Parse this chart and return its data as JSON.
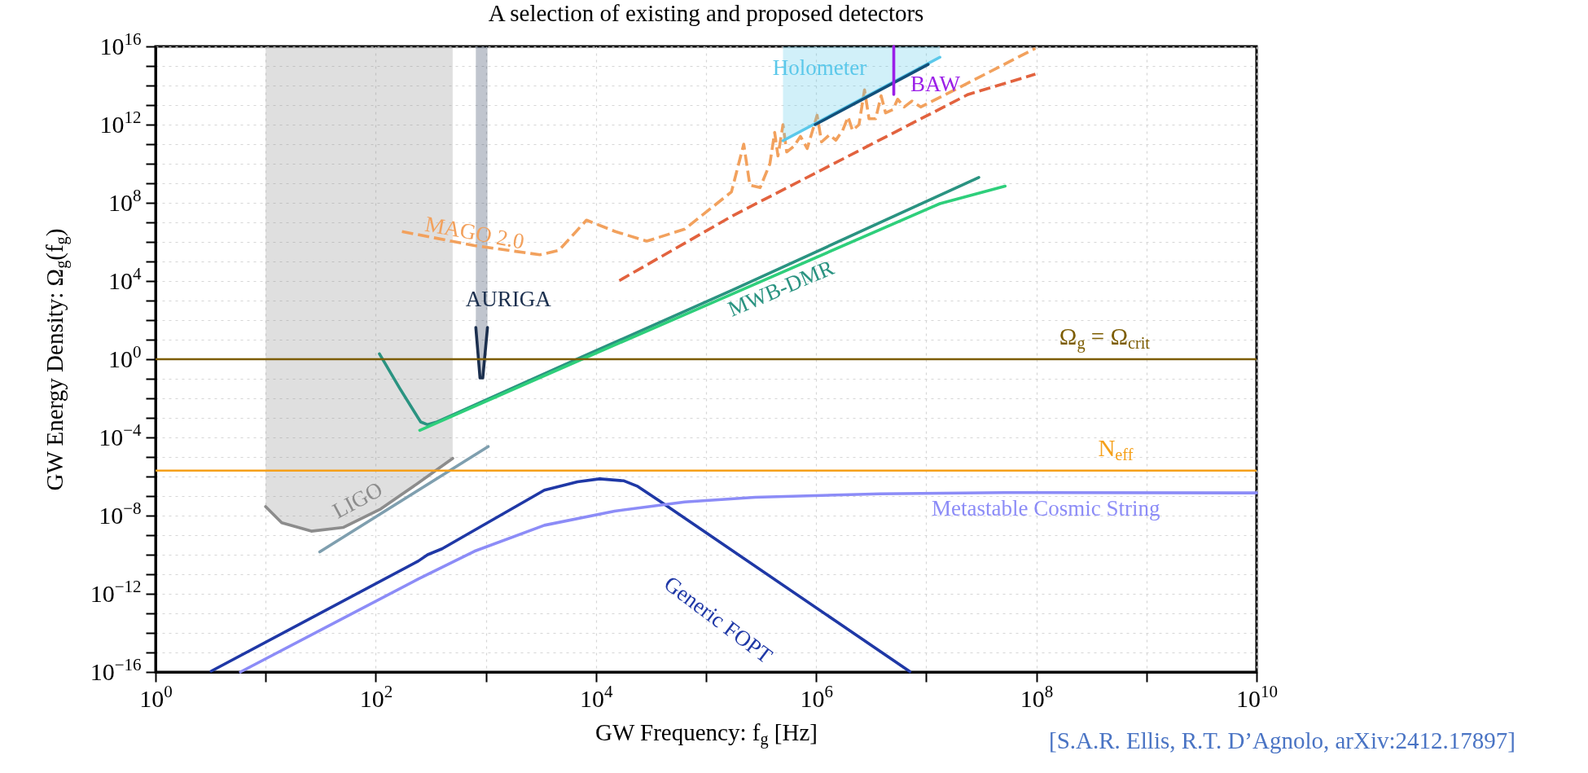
{
  "chart_data": {
    "type": "line",
    "title": "A selection of existing and proposed detectors",
    "xlabel": "GW Frequency: f$_{g}$ [Hz]",
    "ylabel": "GW Energy Density: Ω$_{g}$(f$_{g}$)",
    "log": "xy",
    "grid": true,
    "xlim": [
      1,
      10000000000
    ],
    "ylim": [
      1e-16,
      1e+16
    ],
    "xticks": [
      {
        "value": 1,
        "label": "10$^{0}$"
      },
      {
        "value": 10,
        "label": null
      },
      {
        "value": 100,
        "label": "10$^{2}$"
      },
      {
        "value": 1000,
        "label": null
      },
      {
        "value": 10000,
        "label": "10$^{4}$"
      },
      {
        "value": 100000,
        "label": null
      },
      {
        "value": 1000000,
        "label": "10$^{6}$"
      },
      {
        "value": 10000000,
        "label": null
      },
      {
        "value": 100000000,
        "label": "10$^{8}$"
      },
      {
        "value": 1000000000,
        "label": null
      },
      {
        "value": 10000000000,
        "label": "10$^{10}$"
      }
    ],
    "yticks": [
      {
        "value": 1e-16,
        "label": "10$^{−16}$"
      },
      {
        "value": 1e-15,
        "label": null
      },
      {
        "value": 1e-14,
        "label": null
      },
      {
        "value": 1e-13,
        "label": null
      },
      {
        "value": 1e-12,
        "label": "10$^{−12}$"
      },
      {
        "value": 1e-11,
        "label": null
      },
      {
        "value": 1e-10,
        "label": null
      },
      {
        "value": 1e-09,
        "label": null
      },
      {
        "value": 1e-08,
        "label": "10$^{−8}$"
      },
      {
        "value": 1e-07,
        "label": null
      },
      {
        "value": 1e-06,
        "label": null
      },
      {
        "value": 1e-05,
        "label": null
      },
      {
        "value": 0.0001,
        "label": "10$^{−4}$"
      },
      {
        "value": 0.001,
        "label": null
      },
      {
        "value": 0.01,
        "label": null
      },
      {
        "value": 0.1,
        "label": null
      },
      {
        "value": 1,
        "label": "10$^{0}$"
      },
      {
        "value": 10,
        "label": null
      },
      {
        "value": 100,
        "label": null
      },
      {
        "value": 1000,
        "label": null
      },
      {
        "value": 10000,
        "label": "10$^{4}$"
      },
      {
        "value": 100000.0,
        "label": null
      },
      {
        "value": 1000000.0,
        "label": null
      },
      {
        "value": 10000000.0,
        "label": null
      },
      {
        "value": 100000000.0,
        "label": "10$^{8}$"
      },
      {
        "value": 1000000000.0,
        "label": null
      },
      {
        "value": 10000000000.0,
        "label": null
      },
      {
        "value": 100000000000.0,
        "label": null
      },
      {
        "value": 1000000000000.0,
        "label": "10$^{12}$"
      },
      {
        "value": 10000000000000.0,
        "label": null
      },
      {
        "value": 100000000000000.0,
        "label": null
      },
      {
        "value": 1000000000000000.0,
        "label": null
      },
      {
        "value": 1e+16,
        "label": "10$^{16}$"
      }
    ],
    "series": [
      {
        "name": "LIGO",
        "color": "#8c8c8c",
        "x": [
          10,
          14,
          26,
          51,
          111,
          243,
          500
        ],
        "values": [
          2.9e-08,
          4.3e-09,
          1.6e-09,
          2.5e-09,
          2.2e-08,
          4.6e-07,
          8.5e-06
        ],
        "lower": [
          2.9e-08,
          4.3e-09,
          1.6e-09,
          2.5e-09,
          2.2e-08,
          4.6e-07,
          8.5e-06
        ],
        "upper": [
          1e+16,
          1e+16,
          1e+16,
          1e+16,
          1e+16,
          1e+16,
          1e+16
        ]
      },
      {
        "color": "#7f9faf",
        "x": [
          31,
          1050
        ],
        "values": [
          1.4e-10,
          3.4e-05
        ]
      },
      {
        "name": "AURIGA",
        "color": "#1b2f4e",
        "x": [
          811,
          885,
          938,
          1035
        ],
        "values": [
          42,
          0.11,
          0.11,
          42
        ],
        "lower": [
          42,
          0.11,
          0.11,
          42
        ],
        "upper": [
          1e+16,
          1e+16,
          1e+16,
          1e+16
        ]
      },
      {
        "name": "MWB-DMR",
        "color": "#2a9381",
        "x": [
          108,
          165,
          221,
          256,
          296,
          360,
          7460,
          175000,
          30000000
        ],
        "values": [
          1.9,
          0.033,
          0.0023,
          0.00062,
          0.00045,
          0.00062,
          1.3,
          3500,
          2000000000
        ]
      },
      {
        "color": "#2ecf7b",
        "x": [
          251,
          7460,
          175000,
          13300000,
          52000000
        ],
        "values": [
          0.00023,
          1,
          2240,
          91000000,
          710000000
        ]
      },
      {
        "color": "#e2623e",
        "line_style": "dashed",
        "x": [
          16300,
          175000,
          24000000,
          98000000
        ],
        "values": [
          10500,
          22000000,
          35000000000000.0,
          380000000000000.0
        ]
      },
      {
        "name": "MAGO 2.0",
        "color": "#f2a15d",
        "line_style": "dashed",
        "x": [
          173,
          787,
          3100,
          4600,
          8200,
          15000,
          29000,
          64000,
          170000,
          220000,
          250000,
          310000,
          380000,
          420000,
          450000,
          500000,
          540000,
          630000,
          720000,
          830000,
          1020000,
          1120000,
          1320000,
          1510000,
          1740000,
          1950000,
          2140000,
          2450000,
          2750000,
          3020000,
          3470000,
          3890000,
          4270000,
          5000000,
          5500000,
          6300000,
          7400000,
          8900000,
          20000000,
          98000000
        ],
        "values": [
          3400000,
          650000,
          220000,
          370000,
          13000000,
          3400000,
          1100000,
          4500000,
          360000000,
          100000000000.0,
          800000000,
          600000000,
          10000000000.0,
          400000000000.0,
          25000000000.0,
          1000000000000.0,
          40000000000.0,
          80000000000.0,
          250000000000.0,
          60000000000.0,
          3000000000000.0,
          130000000000.0,
          300000000000.0,
          160000000000.0,
          500000000000.0,
          2500000000000.0,
          500000000000.0,
          1000000000000.0,
          60000000000000.0,
          2000000000000.0,
          2000000000000.0,
          30000000000000.0,
          4000000000000.0,
          6000000000000.0,
          20000000000000.0,
          8000000000000.0,
          16000000000000.0,
          8000000000000.0,
          80000000000000.0,
          8000000000000000.0
        ]
      },
      {
        "name": "Holometer",
        "color": "#5bc8ea",
        "x": [
          500000,
          13300000
        ],
        "values": [
          150000000000.0,
          2800000000000000.0
        ],
        "lower": [
          150000000000.0,
          2800000000000000.0
        ],
        "upper": [
          1e+16,
          1e+16
        ]
      },
      {
        "color": "#12507a",
        "x": [
          980000,
          10400000
        ],
        "values": [
          1000000000000.0,
          1200000000000000.0
        ]
      },
      {
        "name": "BAW",
        "color": "#9b1fe8",
        "x": [
          5070000,
          5070000
        ],
        "values": [
          1e+16,
          35000000000000.0
        ]
      },
      {
        "name": "Generic FOPT",
        "color": "#1f38a6",
        "x": [
          3.2,
          243,
          296,
          400,
          3400,
          6800,
          10800,
          18000,
          24000,
          39000,
          7100000
        ],
        "values": [
          1.1e-16,
          4.7e-11,
          1e-10,
          2e-10,
          2e-07,
          5.4e-07,
          7.6e-07,
          6e-07,
          3.1e-07,
          5e-08,
          1.05e-16
        ]
      },
      {
        "name": "Metastable Cosmic String",
        "color": "#8c8cf7",
        "x": [
          5.9,
          243,
          787,
          3400,
          14800,
          64000,
          280000,
          3800000,
          52000000,
          10000000000
        ],
        "values": [
          1e-16,
          5.7e-12,
          1.5e-10,
          3.2e-09,
          1.7e-08,
          5e-08,
          8.7e-08,
          1.3e-07,
          1.5e-07,
          1.45e-07
        ]
      }
    ],
    "ref_lines": [
      {
        "axis": "y",
        "value": 1,
        "label": "Ω$_{g}$ = Ω$_{crit}$",
        "color": "#7d5d00"
      },
      {
        "axis": "y",
        "value": 2e-06,
        "label": "N$_{eff}$",
        "color": "#f5a01a"
      }
    ],
    "annotations": [
      "[S.A.R. Ellis, R.T. D’Agnolo, arXiv:2412.17897]"
    ]
  }
}
